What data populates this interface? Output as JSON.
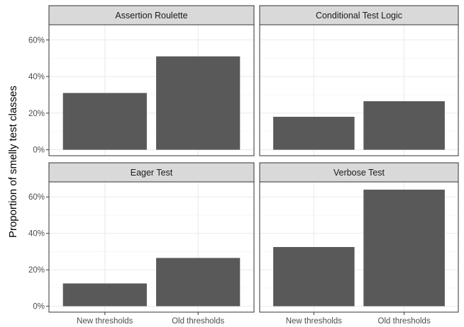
{
  "chart_data": {
    "type": "bar",
    "ylabel": "Proportion of smelly test classes",
    "xlabel": "",
    "categories": [
      "New thresholds",
      "Old thresholds"
    ],
    "ylim": [
      0,
      0.65
    ],
    "yticks": [
      0,
      0.2,
      0.4,
      0.6
    ],
    "ytick_labels": [
      "0%",
      "20%",
      "40%",
      "60%"
    ],
    "grid": true,
    "layout": "2x2 facets, shared y axis",
    "colors": {
      "bar": "#595959",
      "strip_fill": "#d9d9d9",
      "strip_border": "#333333",
      "panel_border": "#333333",
      "grid_major": "#ebebeb",
      "grid_minor": "#f5f5f5"
    },
    "panels": [
      {
        "title": "Assertion Roulette",
        "values": [
          0.31,
          0.51
        ]
      },
      {
        "title": "Conditional Test Logic",
        "values": [
          0.18,
          0.265
        ]
      },
      {
        "title": "Eager Test",
        "values": [
          0.125,
          0.265
        ]
      },
      {
        "title": "Verbose Test",
        "values": [
          0.325,
          0.64
        ]
      }
    ]
  }
}
